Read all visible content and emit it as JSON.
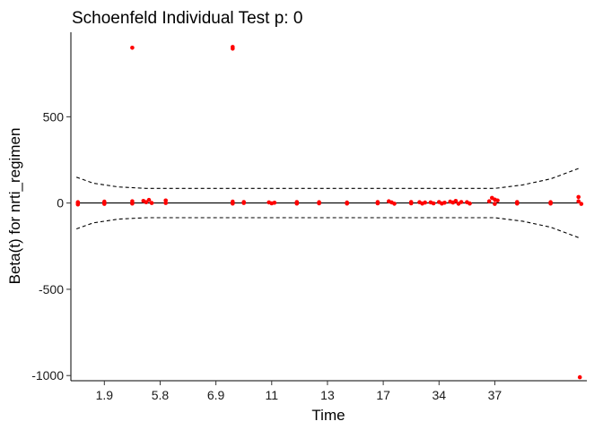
{
  "chart_data": {
    "type": "scatter",
    "title": "Schoenfeld Individual Test p: 0",
    "xlabel": "Time",
    "ylabel": "Beta(t) for nrti_regimen",
    "x_tick_labels": [
      "1.9",
      "5.8",
      "6.9",
      "11",
      "13",
      "17",
      "34",
      "37"
    ],
    "x_tick_positions": [
      2,
      4,
      6,
      8,
      10,
      12,
      14,
      16
    ],
    "xlim": [
      0.8,
      19.3
    ],
    "y_ticks": [
      500,
      0,
      -500,
      -1000
    ],
    "y_tick_labels": [
      "500",
      "0",
      "-500",
      "-1000"
    ],
    "ylim": [
      -1030,
      990
    ],
    "grid": false,
    "colors": {
      "points": "#ff0000",
      "line": "#000000",
      "band": "#000000"
    },
    "fit": {
      "x": [
        1,
        19
      ],
      "y": [
        0,
        0
      ]
    },
    "band_upper": {
      "x": [
        1,
        1.6,
        2.5,
        3.5,
        4.5,
        6,
        8,
        10,
        12,
        13.5,
        14.5,
        16,
        17,
        18,
        19
      ],
      "y": [
        150,
        115,
        93,
        85,
        85,
        85,
        85,
        85,
        85,
        85,
        85,
        85,
        105,
        140,
        200
      ]
    },
    "band_lower": {
      "x": [
        1,
        1.6,
        2.5,
        3.5,
        4.5,
        6,
        8,
        10,
        12,
        13.5,
        14.5,
        16,
        17,
        18,
        19
      ],
      "y": [
        -150,
        -115,
        -93,
        -85,
        -85,
        -85,
        -85,
        -85,
        -85,
        -85,
        -85,
        -85,
        -105,
        -140,
        -200
      ]
    },
    "points": [
      {
        "x": 1.05,
        "y": 5
      },
      {
        "x": 1.05,
        "y": -8
      },
      {
        "x": 1.05,
        "y": 0
      },
      {
        "x": 2.0,
        "y": 8
      },
      {
        "x": 2.0,
        "y": -5
      },
      {
        "x": 2.0,
        "y": 0
      },
      {
        "x": 3.0,
        "y": 10
      },
      {
        "x": 3.0,
        "y": -3
      },
      {
        "x": 3.0,
        "y": 900
      },
      {
        "x": 3.4,
        "y": 12
      },
      {
        "x": 3.5,
        "y": 5
      },
      {
        "x": 3.6,
        "y": 18
      },
      {
        "x": 3.7,
        "y": 0
      },
      {
        "x": 4.2,
        "y": 15
      },
      {
        "x": 4.2,
        "y": 0
      },
      {
        "x": 6.6,
        "y": 895
      },
      {
        "x": 6.6,
        "y": 905
      },
      {
        "x": 6.6,
        "y": 8
      },
      {
        "x": 6.6,
        "y": -3
      },
      {
        "x": 7.0,
        "y": 6
      },
      {
        "x": 7.0,
        "y": 0
      },
      {
        "x": 7.9,
        "y": 4
      },
      {
        "x": 8.0,
        "y": -2
      },
      {
        "x": 8.1,
        "y": 2
      },
      {
        "x": 8.9,
        "y": 6
      },
      {
        "x": 8.9,
        "y": -3
      },
      {
        "x": 9.7,
        "y": 5
      },
      {
        "x": 9.7,
        "y": -2
      },
      {
        "x": 10.7,
        "y": 3
      },
      {
        "x": 10.7,
        "y": -3
      },
      {
        "x": 11.8,
        "y": 6
      },
      {
        "x": 11.8,
        "y": -2
      },
      {
        "x": 12.2,
        "y": 10
      },
      {
        "x": 12.3,
        "y": 4
      },
      {
        "x": 12.4,
        "y": -4
      },
      {
        "x": 13.0,
        "y": 6
      },
      {
        "x": 13.0,
        "y": -2
      },
      {
        "x": 13.3,
        "y": 5
      },
      {
        "x": 13.4,
        "y": -3
      },
      {
        "x": 13.5,
        "y": 3
      },
      {
        "x": 13.7,
        "y": 4
      },
      {
        "x": 13.8,
        "y": -2
      },
      {
        "x": 14.0,
        "y": 6
      },
      {
        "x": 14.1,
        "y": -3
      },
      {
        "x": 14.2,
        "y": 2
      },
      {
        "x": 14.4,
        "y": 8
      },
      {
        "x": 14.5,
        "y": 3
      },
      {
        "x": 14.6,
        "y": 12
      },
      {
        "x": 14.7,
        "y": -4
      },
      {
        "x": 14.8,
        "y": 6
      },
      {
        "x": 15.0,
        "y": 5
      },
      {
        "x": 15.1,
        "y": -3
      },
      {
        "x": 15.8,
        "y": 10
      },
      {
        "x": 15.9,
        "y": 30
      },
      {
        "x": 16.0,
        "y": 20
      },
      {
        "x": 16.0,
        "y": -5
      },
      {
        "x": 16.1,
        "y": 15
      },
      {
        "x": 16.8,
        "y": 6
      },
      {
        "x": 16.8,
        "y": -3
      },
      {
        "x": 18.0,
        "y": 5
      },
      {
        "x": 18.0,
        "y": -3
      },
      {
        "x": 19.0,
        "y": 35
      },
      {
        "x": 19.0,
        "y": 10
      },
      {
        "x": 19.1,
        "y": -5
      },
      {
        "x": 19.05,
        "y": -1010
      }
    ]
  }
}
